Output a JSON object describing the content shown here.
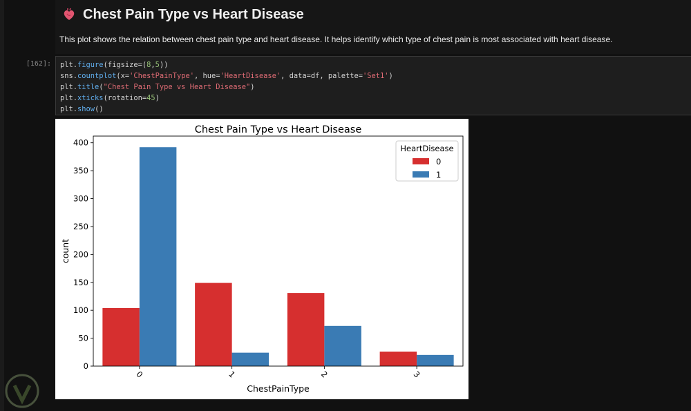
{
  "markdown": {
    "title": "Chest Pain Type vs Heart Disease",
    "description": "This plot shows the relation between chest pain type and heart disease. It helps identify which type of chest pain is most associated with heart disease."
  },
  "code_cell": {
    "prompt": "[162]:",
    "lines": [
      "plt.figure(figsize=(8,5))",
      "sns.countplot(x='ChestPainType', hue='HeartDisease', data=df, palette='Set1')",
      "plt.title(\"Chest Pain Type vs Heart Disease\")",
      "plt.xticks(rotation=45)",
      "plt.show()"
    ]
  },
  "colors": {
    "series_0": "#d62f2f",
    "series_1": "#3a7bb4"
  },
  "chart_data": {
    "type": "bar",
    "title": "Chest Pain Type vs Heart Disease",
    "xlabel": "ChestPainType",
    "ylabel": "count",
    "categories": [
      "0",
      "1",
      "2",
      "3"
    ],
    "series": [
      {
        "name": "0",
        "values": [
          104,
          149,
          131,
          26
        ]
      },
      {
        "name": "1",
        "values": [
          392,
          24,
          72,
          20
        ]
      }
    ],
    "yticks": [
      0,
      50,
      100,
      150,
      200,
      250,
      300,
      350,
      400
    ],
    "ylim": [
      0,
      412
    ],
    "legend": {
      "title": "HeartDisease",
      "placement": "top-right"
    },
    "xtick_rotation": 45,
    "grid": false
  }
}
